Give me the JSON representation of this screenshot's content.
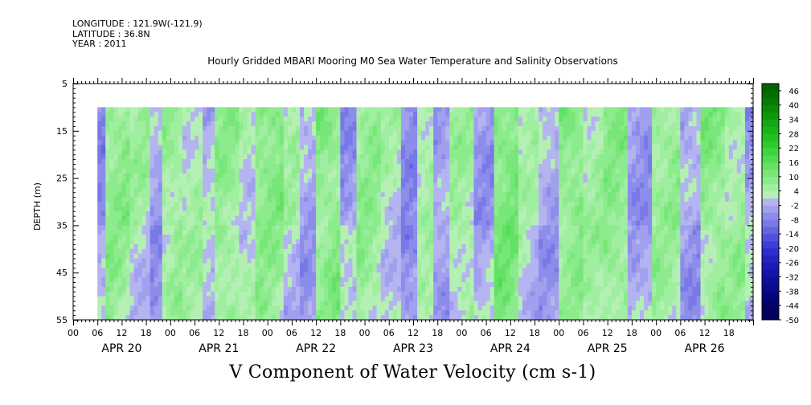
{
  "header": {
    "longitude": "LONGITUDE : 121.9W(-121.9)",
    "latitude": "LATITUDE : 36.8N",
    "year": "YEAR : 2011",
    "plot_title": "Hourly Gridded MBARI Mooring M0 Sea Water Temperature and Salinity Observations"
  },
  "chart_data": {
    "type": "heatmap",
    "title": "Hourly Gridded MBARI Mooring M0 Sea Water Temperature and Salinity Observations",
    "variable_title": "V Component of Water Velocity (cm s-1)",
    "ylabel": "DEPTH (m)",
    "ylim": [
      55,
      5
    ],
    "y_ticks": [
      5,
      15,
      25,
      35,
      45,
      55
    ],
    "x_hour_labels": [
      "00",
      "06",
      "12",
      "18",
      "00",
      "06",
      "12",
      "18",
      "00",
      "06",
      "12",
      "18",
      "00",
      "06",
      "12",
      "18",
      "00",
      "06",
      "12",
      "18",
      "00",
      "06",
      "12",
      "18",
      "00",
      "06",
      "12",
      "18"
    ],
    "x_day_labels": [
      "APR 20",
      "APR 21",
      "APR 22",
      "APR 23",
      "APR 24",
      "APR 25",
      "APR 26"
    ],
    "x_range_hours": [
      0,
      168
    ],
    "data_start_hour": 6,
    "data_depth_range": [
      10,
      55
    ],
    "colorbar": {
      "ticks": [
        "46",
        "40",
        "34",
        "28",
        "22",
        "16",
        "10",
        "4",
        "-2",
        "-8",
        "-14",
        "-20",
        "-26",
        "-32",
        "-38",
        "-44",
        "-50"
      ],
      "range": [
        -50,
        49
      ],
      "step": 3,
      "negative_colors": [
        "#b4b4f0",
        "#a0a0ee",
        "#8c8ceb",
        "#7878e6",
        "#6464e1",
        "#5050dc",
        "#3c3cd6",
        "#2d2dcc",
        "#2323c0",
        "#1a1ab4",
        "#1414a6",
        "#0e0e98",
        "#0a0a8a",
        "#06067c",
        "#04046e",
        "#020262",
        "#010156"
      ],
      "positive_colors": [
        "#b4f0b4",
        "#a0eea0",
        "#8ceb8c",
        "#78e678",
        "#64e164",
        "#50dc50",
        "#3cd63c",
        "#2dcc2d",
        "#23c023",
        "#1ab41a",
        "#14a614",
        "#0e980e",
        "#0a8a0a",
        "#067c06",
        "#046e04",
        "#026202",
        "#015601"
      ]
    },
    "series_description": "Alternating bands of northward (positive) and southward (negative) velocity over depth and time",
    "value_bands": [
      {
        "hour_start": 6,
        "hour_end": 8,
        "value": -6
      },
      {
        "hour_start": 8,
        "hour_end": 14,
        "value": 9
      },
      {
        "hour_start": 14,
        "hour_end": 19,
        "value": 5
      },
      {
        "hour_start": 19,
        "hour_end": 22,
        "value": -3
      },
      {
        "hour_start": 22,
        "hour_end": 27,
        "value": 8
      },
      {
        "hour_start": 27,
        "hour_end": 32,
        "value": 4
      },
      {
        "hour_start": 32,
        "hour_end": 35,
        "value": -2
      },
      {
        "hour_start": 35,
        "hour_end": 41,
        "value": 7
      },
      {
        "hour_start": 41,
        "hour_end": 45,
        "value": 3
      },
      {
        "hour_start": 45,
        "hour_end": 52,
        "value": 11
      },
      {
        "hour_start": 52,
        "hour_end": 56,
        "value": 4
      },
      {
        "hour_start": 56,
        "hour_end": 60,
        "value": -3
      },
      {
        "hour_start": 60,
        "hour_end": 66,
        "value": 10
      },
      {
        "hour_start": 66,
        "hour_end": 70,
        "value": -5
      },
      {
        "hour_start": 70,
        "hour_end": 76,
        "value": 7
      },
      {
        "hour_start": 76,
        "hour_end": 81,
        "value": 3
      },
      {
        "hour_start": 81,
        "hour_end": 85,
        "value": -6
      },
      {
        "hour_start": 85,
        "hour_end": 89,
        "value": 6
      },
      {
        "hour_start": 89,
        "hour_end": 93,
        "value": -4
      },
      {
        "hour_start": 93,
        "hour_end": 99,
        "value": 5
      },
      {
        "hour_start": 99,
        "hour_end": 104,
        "value": -5
      },
      {
        "hour_start": 104,
        "hour_end": 110,
        "value": 12
      },
      {
        "hour_start": 110,
        "hour_end": 115,
        "value": 3
      },
      {
        "hour_start": 115,
        "hour_end": 120,
        "value": -2
      },
      {
        "hour_start": 120,
        "hour_end": 126,
        "value": 11
      },
      {
        "hour_start": 126,
        "hour_end": 131,
        "value": 5
      },
      {
        "hour_start": 131,
        "hour_end": 137,
        "value": 8
      },
      {
        "hour_start": 137,
        "hour_end": 143,
        "value": -5
      },
      {
        "hour_start": 143,
        "hour_end": 150,
        "value": 8
      },
      {
        "hour_start": 150,
        "hour_end": 155,
        "value": -3
      },
      {
        "hour_start": 155,
        "hour_end": 161,
        "value": 10
      },
      {
        "hour_start": 161,
        "hour_end": 166,
        "value": 6
      },
      {
        "hour_start": 166,
        "hour_end": 168,
        "value": -4
      }
    ]
  }
}
